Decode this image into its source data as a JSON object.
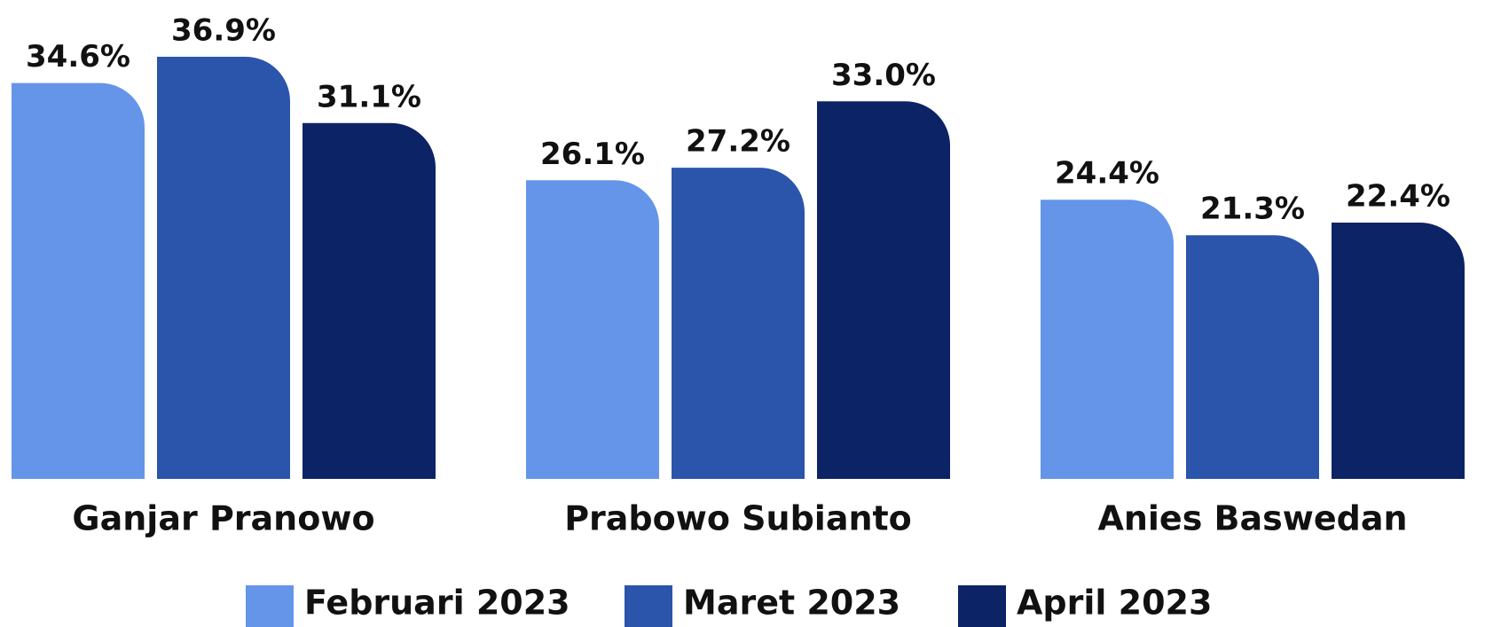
{
  "chart_data": {
    "type": "bar",
    "categories": [
      "Ganjar Pranowo",
      "Prabowo Subianto",
      "Anies Baswedan"
    ],
    "series": [
      {
        "name": "Februari 2023",
        "color": "#6495e8",
        "values": [
          34.6,
          26.1,
          24.4
        ],
        "value_labels": [
          "34.6%",
          "26.1%",
          "24.4%"
        ]
      },
      {
        "name": "Maret 2023",
        "color": "#2b55ab",
        "values": [
          36.9,
          27.2,
          21.3
        ],
        "value_labels": [
          "36.9%",
          "27.2%",
          "21.3%"
        ]
      },
      {
        "name": "April 2023",
        "color": "#0c2366",
        "values": [
          31.1,
          33.0,
          22.4
        ],
        "value_labels": [
          "31.1%",
          "33.0%",
          "22.4%"
        ]
      }
    ]
  }
}
